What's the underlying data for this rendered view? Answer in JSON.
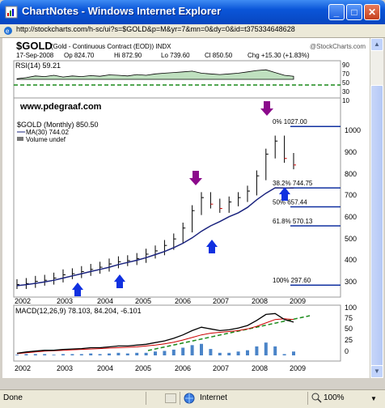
{
  "window": {
    "title": "ChartNotes - Windows Internet Explorer",
    "url": "http://stockcharts.com/h-sc/ui?s=$GOLD&p=M&yr=7&mn=0&dy=0&id=t375334648628"
  },
  "chart": {
    "symbol": "$GOLD",
    "name": "(Gold - Continuous Contract (EOD)) INDX",
    "brand": "@StockCharts.com",
    "date": "17-Sep-2008",
    "open": "Op 824.70",
    "high": "Hi 872.90",
    "low": "Lo 739.60",
    "close": "Cl 850.50",
    "change": "Chg +15.30 (+1.83%)",
    "rsi_label": "RSI(14) 59.21",
    "website": "www.pdegraaf.com",
    "main_label": "$GOLD (Monthly) 850.50",
    "ma_label": "MA(30) 744.02",
    "volume_label": "Volume undef",
    "macd_label": "MACD(12,26,9) 78.103, 84.204, -6.101",
    "macd_value_1": "78.103,",
    "macd_value_2": "84.204,",
    "macd_value_3": "-6.101"
  },
  "fib_labels": [
    {
      "text": "0% 1027.00"
    },
    {
      "text": "38.2% 744.75"
    },
    {
      "text": "50% 657.44"
    },
    {
      "text": "61.8% 570.13"
    },
    {
      "text": "100% 297.60"
    }
  ],
  "years": [
    "2002",
    "2003",
    "2004",
    "2005",
    "2006",
    "2007",
    "2008",
    "2009"
  ],
  "y_axis_main": [
    "1000",
    "900",
    "800",
    "700",
    "600",
    "500",
    "400",
    "300"
  ],
  "y_axis_rsi": [
    "90",
    "70",
    "50",
    "30",
    "10"
  ],
  "y_axis_macd": [
    "100",
    "75",
    "50",
    "25",
    "0"
  ],
  "status": {
    "left": "Done",
    "zone": "Internet",
    "zoom": "100%"
  },
  "colors": {
    "ma": "#1a237e",
    "bars": "#cc0000",
    "support": "#1a8a1a",
    "marker_down": "#8b0a8b",
    "marker_up": "#1030e0",
    "histogram": "#4a84c8"
  },
  "chart_data": {
    "type": "line",
    "price_closes": [
      300,
      305,
      315,
      320,
      330,
      345,
      350,
      360,
      370,
      380,
      395,
      405,
      410,
      420,
      440,
      455,
      480,
      510,
      560,
      640,
      700,
      670,
      650,
      680,
      700,
      730,
      800,
      900,
      960,
      880,
      850
    ],
    "ma_values": [
      295,
      300,
      306,
      312,
      320,
      330,
      340,
      350,
      360,
      370,
      380,
      392,
      402,
      412,
      424,
      438,
      452,
      470,
      490,
      515,
      545,
      570,
      590,
      612,
      630,
      655,
      690,
      720,
      745,
      744,
      744
    ],
    "rsi": [
      52,
      55,
      60,
      58,
      62,
      57,
      60,
      58,
      61,
      59,
      63,
      62,
      60,
      64,
      62,
      66,
      68,
      70,
      72,
      74,
      68,
      66,
      64,
      66,
      68,
      72,
      76,
      78,
      70,
      62,
      59
    ],
    "macd_line": [
      5,
      8,
      10,
      12,
      12,
      14,
      15,
      16,
      18,
      18,
      20,
      22,
      22,
      24,
      26,
      30,
      34,
      40,
      48,
      58,
      66,
      62,
      58,
      60,
      64,
      70,
      82,
      96,
      98,
      84,
      78
    ],
    "signal_line": [
      4,
      6,
      8,
      10,
      11,
      12,
      13,
      14,
      15,
      16,
      17,
      18,
      19,
      20,
      22,
      24,
      27,
      31,
      36,
      42,
      48,
      52,
      54,
      56,
      58,
      62,
      68,
      76,
      84,
      86,
      84
    ],
    "fib_levels": [
      1027.0,
      744.75,
      657.44,
      570.13,
      297.6
    ],
    "ylim": [
      250,
      1080
    ]
  }
}
